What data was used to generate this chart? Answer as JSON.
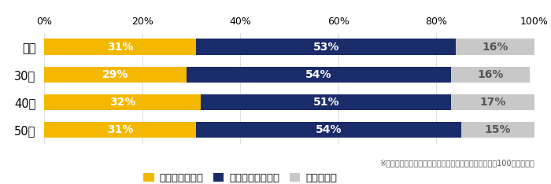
{
  "categories": [
    "全体",
    "30代",
    "40代",
    "50代"
  ],
  "series": {
    "取り組んでいる": [
      31,
      29,
      32,
      31
    ],
    "取り組んでいない": [
      53,
      54,
      51,
      54
    ],
    "わからない": [
      16,
      16,
      17,
      15
    ]
  },
  "colors": {
    "取り組んでいる": "#F5B800",
    "取り組んでいない": "#1B2C6B",
    "わからない": "#C8C8C8"
  },
  "note": "※小数点以下は四捨五入しているため、必ずしも合計が100にならない",
  "legend_labels": [
    "取り組んでいる",
    "取り組んでいない",
    "わからない"
  ],
  "xlim": [
    0,
    100
  ],
  "xticks": [
    0,
    20,
    40,
    60,
    80,
    100
  ],
  "xticklabels": [
    "0%",
    "20%",
    "40%",
    "60%",
    "80%",
    "100%"
  ],
  "bar_height": 0.58,
  "figsize": [
    7.0,
    2.34
  ],
  "dpi": 100,
  "tick_fontsize": 9,
  "legend_fontsize": 9.5,
  "note_fontsize": 7,
  "ytick_fontsize": 10.5,
  "text_color_light": "#FFFFFF",
  "text_color_dark": "#555555",
  "background_color": "#FFFFFF",
  "bar_value_fontsize": 10
}
